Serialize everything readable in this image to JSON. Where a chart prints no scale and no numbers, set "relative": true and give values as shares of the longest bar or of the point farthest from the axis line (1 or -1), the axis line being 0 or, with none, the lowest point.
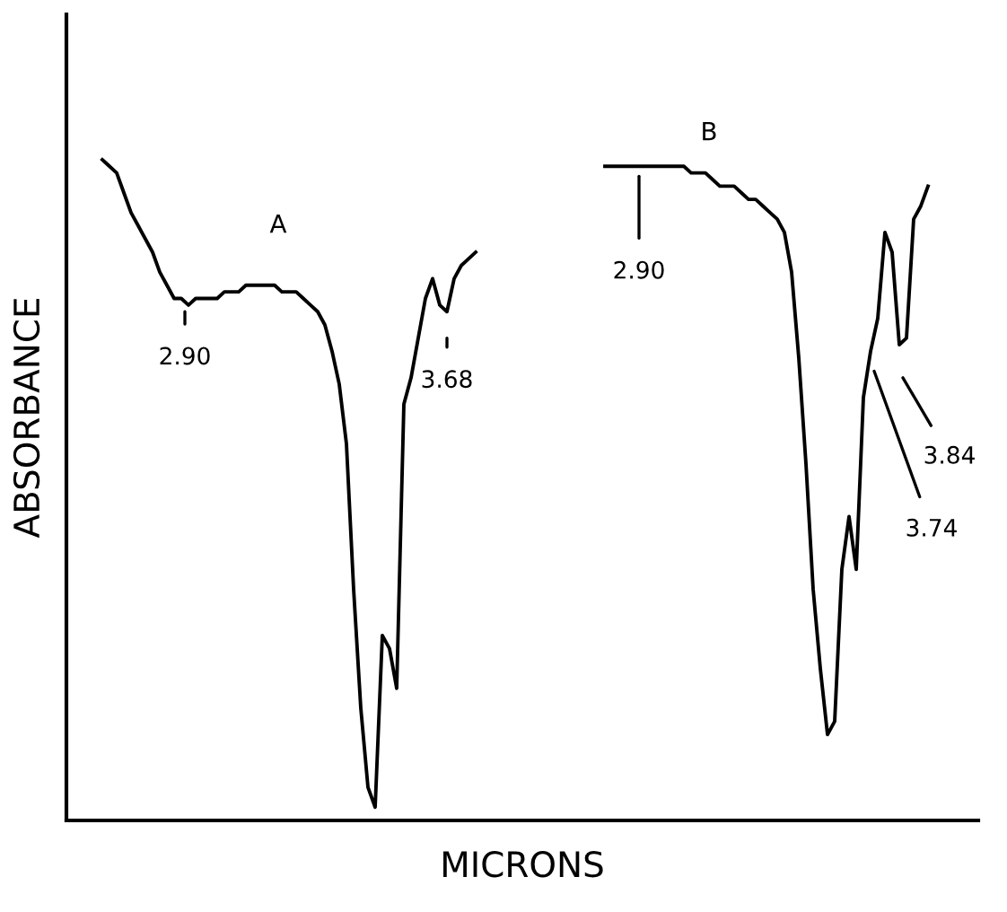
{
  "chart_data": {
    "type": "line",
    "relative": true,
    "xlabel": "MICRONS",
    "ylabel": "ABSORBANCE",
    "legend": false,
    "marker": "none",
    "line_style": "solid",
    "categories": [
      null,
      null,
      null,
      null,
      null,
      null,
      null,
      null,
      null,
      null,
      null,
      null,
      null,
      null,
      null,
      null,
      null,
      null,
      null,
      null,
      null,
      null,
      null,
      null,
      null,
      null,
      null,
      null,
      null,
      null,
      null,
      null,
      null,
      null,
      null,
      null,
      null,
      null,
      null,
      null,
      null,
      null,
      null,
      null,
      null,
      null,
      null,
      null,
      null,
      null,
      null,
      null,
      null,
      null,
      null,
      null,
      null,
      null,
      null,
      null,
      null,
      null,
      null,
      null,
      null,
      null,
      null,
      null,
      null,
      null,
      null,
      null,
      null,
      null,
      null,
      null,
      null,
      null,
      null,
      null,
      null,
      null,
      null,
      null,
      null,
      null,
      null,
      null,
      null,
      null,
      null,
      null,
      null,
      null,
      null,
      null,
      null,
      null,
      null,
      null,
      null,
      null,
      null,
      null,
      null,
      null,
      null,
      null,
      null,
      null,
      null,
      null,
      null,
      null,
      null,
      null
    ],
    "series": [
      {
        "name": "A",
        "color": "#000000",
        "values": [
          1.0,
          0.99,
          0.98,
          0.95,
          0.92,
          0.9,
          0.88,
          0.86,
          0.83,
          0.81,
          0.79,
          0.79,
          0.78,
          0.79,
          0.79,
          0.79,
          0.79,
          0.8,
          0.8,
          0.8,
          0.81,
          0.81,
          0.81,
          0.81,
          0.81,
          0.8,
          0.8,
          0.8,
          0.79,
          0.78,
          0.77,
          0.75,
          0.71,
          0.66,
          0.57,
          0.35,
          0.17,
          0.05,
          0.02,
          0.28,
          0.26,
          0.2,
          0.63,
          0.67,
          0.73,
          0.79,
          0.82,
          0.78,
          0.77,
          0.82,
          0.84,
          0.85,
          0.86,
          null,
          null,
          null,
          null,
          null,
          null,
          null,
          null,
          null,
          null,
          null,
          null,
          null,
          null,
          null,
          null,
          null,
          null,
          null,
          null,
          null,
          null,
          null,
          null,
          null,
          null,
          null,
          null,
          null,
          null,
          null,
          null,
          null,
          null,
          null,
          null,
          null,
          null,
          null,
          null,
          null,
          null,
          null,
          null,
          null,
          null,
          null,
          null,
          null,
          null,
          null,
          null,
          null,
          null,
          null,
          null,
          null,
          null,
          null,
          null,
          null,
          null,
          null
        ]
      },
      {
        "name": "B",
        "color": "#000000",
        "values": [
          null,
          null,
          null,
          null,
          null,
          null,
          null,
          null,
          null,
          null,
          null,
          null,
          null,
          null,
          null,
          null,
          null,
          null,
          null,
          null,
          null,
          null,
          null,
          null,
          null,
          null,
          null,
          null,
          null,
          null,
          null,
          null,
          null,
          null,
          null,
          null,
          null,
          null,
          null,
          null,
          null,
          null,
          null,
          null,
          null,
          null,
          null,
          null,
          null,
          null,
          null,
          null,
          null,
          null,
          null,
          null,
          null,
          null,
          null,
          null,
          null,
          null,
          null,
          null,
          null,
          null,
          null,
          null,
          null,
          null,
          0.99,
          0.99,
          0.99,
          0.99,
          0.99,
          0.99,
          0.99,
          0.99,
          0.99,
          0.99,
          0.99,
          0.99,
          0.98,
          0.98,
          0.98,
          0.97,
          0.96,
          0.96,
          0.96,
          0.95,
          0.94,
          0.94,
          0.93,
          0.92,
          0.91,
          0.89,
          0.83,
          0.7,
          0.54,
          0.35,
          0.23,
          0.13,
          0.15,
          0.38,
          0.46,
          0.38,
          0.64,
          0.71,
          0.76,
          0.89,
          0.86,
          0.72,
          0.73,
          0.91,
          0.93,
          0.96
        ]
      }
    ],
    "annotations": [
      "2.90",
      "3.68",
      "2.90",
      "3.74",
      "3.84"
    ]
  }
}
